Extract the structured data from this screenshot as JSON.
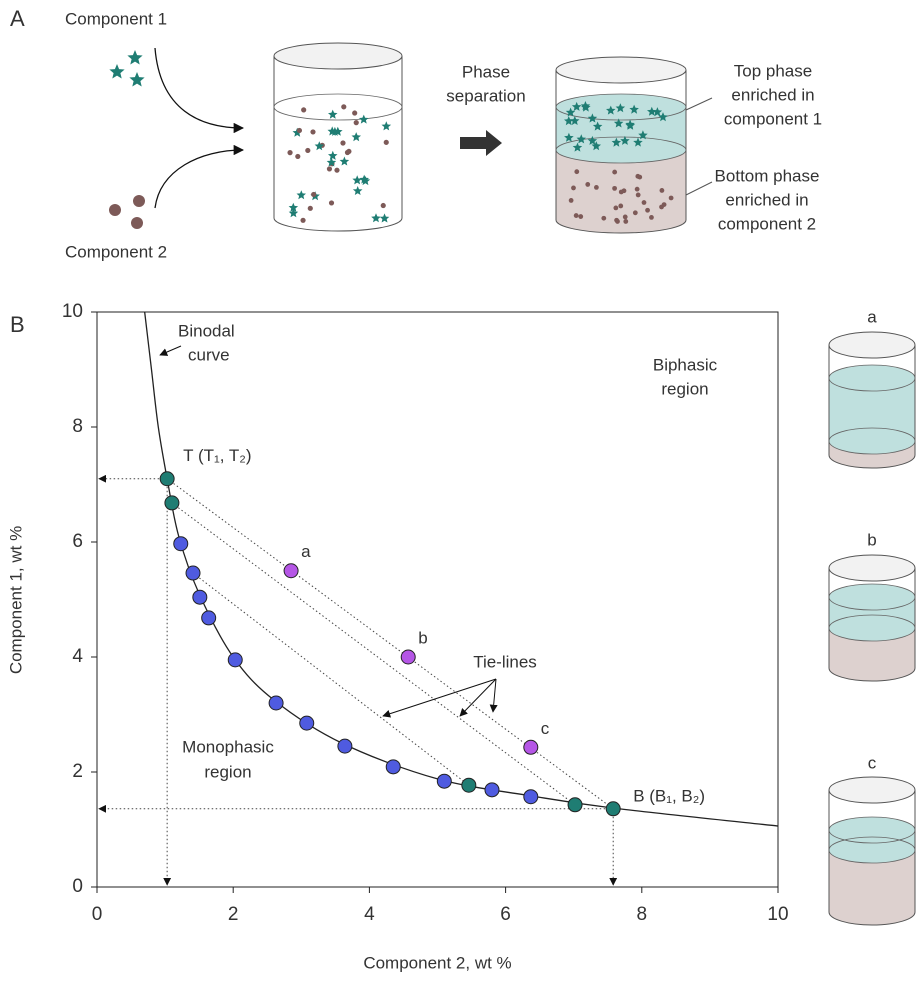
{
  "panel_a": {
    "label": "A",
    "component_1": "Component 1",
    "component_2": "Component 2",
    "arrow_label": [
      "Phase",
      "separation"
    ],
    "top_phase": [
      "Top phase",
      "enriched in",
      "component 1"
    ],
    "bottom_phase": [
      "Bottom phase",
      "enriched in",
      "component 2"
    ]
  },
  "panel_b_label": "B",
  "chart_data": {
    "type": "scatter",
    "x_label": "Component 2, wt %",
    "y_label": "Component 1, wt %",
    "xlim": [
      0,
      10
    ],
    "ylim": [
      0,
      10
    ],
    "xticks": [
      0,
      2,
      4,
      6,
      8,
      10
    ],
    "yticks": [
      0,
      2,
      4,
      6,
      8,
      10
    ],
    "binodal": {
      "color": "#222222",
      "x": [
        0.7,
        0.8,
        0.9,
        1.03,
        1.2,
        1.5,
        2,
        2.6,
        3.6,
        5,
        6.4,
        7.6,
        10
      ],
      "y": [
        10,
        9,
        8,
        7.1,
        6.1,
        5.1,
        4,
        3.25,
        2.5,
        1.88,
        1.58,
        1.37,
        1.06
      ]
    },
    "tie_lines": [
      {
        "x": [
          1.03,
          7.58
        ],
        "y": [
          7.1,
          1.36
        ]
      },
      {
        "x": [
          1.1,
          7.02
        ],
        "y": [
          6.68,
          1.43
        ]
      },
      {
        "x": [
          1.41,
          5.46
        ],
        "y": [
          5.46,
          1.77
        ]
      }
    ],
    "series": [
      {
        "color": "#1f7d73",
        "x": [
          1.03,
          1.1,
          5.46,
          7.02,
          7.58
        ],
        "values": [
          7.1,
          6.68,
          1.77,
          1.43,
          1.36
        ],
        "point_labels": [
          "T (T₁, T₂)",
          null,
          null,
          null,
          "B (B₁, B₂)"
        ]
      },
      {
        "color": "#4f5be0",
        "x": [
          1.23,
          1.41,
          1.51,
          1.64,
          2.03,
          2.63,
          3.08,
          3.64,
          4.35,
          5.1,
          5.8,
          6.37
        ],
        "values": [
          5.97,
          5.46,
          5.04,
          4.68,
          3.95,
          3.2,
          2.85,
          2.45,
          2.09,
          1.84,
          1.69,
          1.57
        ]
      },
      {
        "color": "#b556e6",
        "x": [
          2.85,
          4.57,
          6.37
        ],
        "values": [
          5.5,
          4.0,
          2.43
        ],
        "point_labels": [
          "a",
          "b",
          "c"
        ]
      }
    ],
    "annotations": {
      "binodal": [
        "Binodal",
        "curve"
      ],
      "biphasic": [
        "Biphasic",
        "region"
      ],
      "tie_lines": "Tie-lines",
      "monophasic": [
        "Monophasic",
        "region"
      ]
    }
  }
}
